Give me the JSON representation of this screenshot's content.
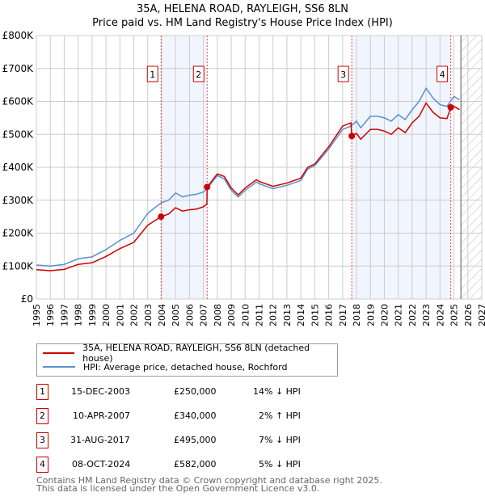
{
  "title": "35A, HELENA ROAD, RAYLEIGH, SS6 8LN",
  "subtitle": "Price paid vs. HM Land Registry's House Price Index (HPI)",
  "chart_data": {
    "type": "line",
    "xlim": [
      1995,
      2027
    ],
    "ylim": [
      0,
      800000
    ],
    "y_ticks": [
      {
        "v": 0,
        "label": "£0"
      },
      {
        "v": 100000,
        "label": "£100K"
      },
      {
        "v": 200000,
        "label": "£200K"
      },
      {
        "v": 300000,
        "label": "£300K"
      },
      {
        "v": 400000,
        "label": "£400K"
      },
      {
        "v": 500000,
        "label": "£500K"
      },
      {
        "v": 600000,
        "label": "£600K"
      },
      {
        "v": 700000,
        "label": "£700K"
      },
      {
        "v": 800000,
        "label": "£800K"
      }
    ],
    "x_ticks": [
      "1995",
      "1996",
      "1997",
      "1998",
      "1999",
      "2000",
      "2001",
      "2002",
      "2003",
      "2004",
      "2005",
      "2006",
      "2007",
      "2008",
      "2009",
      "2010",
      "2011",
      "2012",
      "2013",
      "2014",
      "2015",
      "2016",
      "2017",
      "2018",
      "2019",
      "2020",
      "2021",
      "2022",
      "2023",
      "2024",
      "2025",
      "2026",
      "2027"
    ],
    "forecast_start": 2025.5,
    "series": [
      {
        "name": "35A, HELENA ROAD, RAYLEIGH, SS6 8LN (detached house)",
        "color": "#cc0000",
        "x": [
          1995,
          1996,
          1997,
          1998,
          1999,
          2000,
          2001,
          2002,
          2003,
          2003.96,
          2004.5,
          2005,
          2005.5,
          2006,
          2006.5,
          2007,
          2007.25,
          2007.27,
          2008,
          2008.5,
          2009,
          2009.5,
          2010,
          2010.8,
          2011,
          2012,
          2013,
          2014,
          2014.5,
          2015,
          2016,
          2017,
          2017.6,
          2017.66,
          2018,
          2018.3,
          2019,
          2019.5,
          2020,
          2020.5,
          2021,
          2021.5,
          2022,
          2022.5,
          2023,
          2023.5,
          2024,
          2024.5,
          2024.77,
          2025,
          2025.4
        ],
        "y": [
          89000,
          86000,
          90000,
          105000,
          110000,
          129000,
          153000,
          172000,
          224000,
          250000,
          258000,
          277000,
          267000,
          271000,
          273000,
          280000,
          288000,
          340000,
          380000,
          372000,
          337000,
          316000,
          337000,
          362000,
          357000,
          342000,
          352000,
          367000,
          400000,
          410000,
          462000,
          525000,
          535000,
          495000,
          503000,
          485000,
          515000,
          515000,
          510000,
          500000,
          520000,
          505000,
          535000,
          555000,
          595000,
          567000,
          550000,
          548000,
          582000,
          585000,
          575000
        ]
      },
      {
        "name": "HPI: Average price, detached house, Rochford",
        "color": "#5b8fd0",
        "x": [
          1995,
          1996,
          1997,
          1998,
          1999,
          2000,
          2001,
          2002,
          2003,
          2003.96,
          2004.5,
          2005,
          2005.5,
          2006,
          2006.5,
          2007,
          2007.27,
          2008,
          2008.5,
          2009,
          2009.5,
          2010,
          2010.8,
          2011,
          2012,
          2013,
          2014,
          2014.5,
          2015,
          2016,
          2017,
          2017.6,
          2018,
          2018.3,
          2019,
          2019.5,
          2020,
          2020.5,
          2021,
          2021.5,
          2022,
          2022.5,
          2023,
          2023.5,
          2024,
          2024.5,
          2025,
          2025.4
        ],
        "y": [
          103000,
          100000,
          105000,
          122000,
          128000,
          150000,
          178000,
          200000,
          260000,
          292000,
          300000,
          322000,
          310000,
          315000,
          318000,
          325000,
          335000,
          375000,
          365000,
          330000,
          310000,
          330000,
          355000,
          350000,
          335000,
          345000,
          360000,
          395000,
          405000,
          455000,
          515000,
          525000,
          540000,
          520000,
          555000,
          555000,
          550000,
          540000,
          560000,
          545000,
          575000,
          600000,
          640000,
          610000,
          590000,
          585000,
          615000,
          605000
        ]
      }
    ],
    "sales": [
      {
        "n": "1",
        "x": 2003.96,
        "y": 250000,
        "date": "15-DEC-2003",
        "price": "£250,000",
        "hpi": "14% ↓ HPI"
      },
      {
        "n": "2",
        "x": 2007.27,
        "y": 340000,
        "date": "10-APR-2007",
        "price": "£340,000",
        "hpi": "2% ↑ HPI"
      },
      {
        "n": "3",
        "x": 2017.66,
        "y": 495000,
        "date": "31-AUG-2017",
        "price": "£495,000",
        "hpi": "7% ↓ HPI"
      },
      {
        "n": "4",
        "x": 2024.77,
        "y": 582000,
        "date": "08-OCT-2024",
        "price": "£582,000",
        "hpi": "5% ↓ HPI"
      }
    ]
  },
  "footer": [
    "Contains HM Land Registry data © Crown copyright and database right 2025.",
    "This data is licensed under the Open Government Licence v3.0."
  ]
}
